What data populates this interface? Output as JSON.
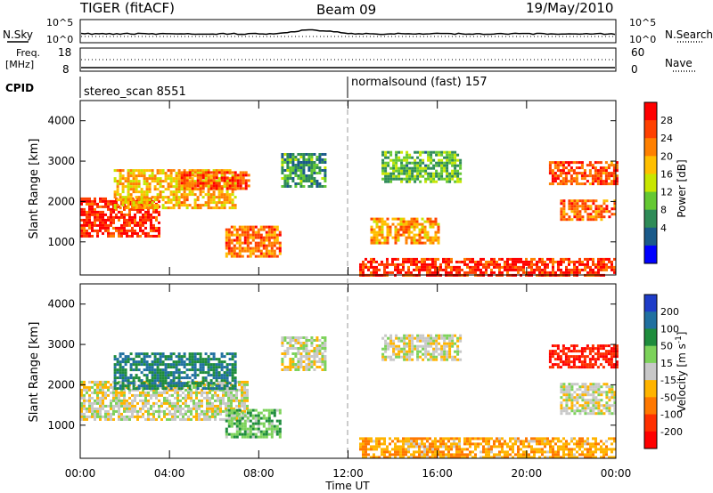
{
  "header": {
    "radar": "TIGER (fitACF)",
    "beam": "Beam 09",
    "date": "19/May/2010"
  },
  "noise_panel": {
    "left_label": "N.Sky",
    "tick_top": "10^5",
    "tick_bottom": "10^0",
    "right_label": "N.Search"
  },
  "freq_panel": {
    "left_label_1": "Freq.",
    "left_label_2": "[MHz]",
    "left_tick_top": "18",
    "left_tick_bottom": "8",
    "right_tick_top": "60",
    "right_tick_bottom": "0",
    "right_label": "Nave"
  },
  "cpid": {
    "label": "CPID",
    "segments": [
      {
        "name": "stereo_scan 8551",
        "start_hour": 0,
        "end_hour": 12
      },
      {
        "name": "normalsound (fast) 157",
        "start_hour": 12,
        "end_hour": 24
      }
    ]
  },
  "power_colorbar": {
    "title": "Power [dB]",
    "ticks": [
      "28",
      "24",
      "20",
      "16",
      "12",
      "8",
      "4"
    ],
    "colors": [
      "#ff0000",
      "#ff4000",
      "#ff8000",
      "#ffbf00",
      "#c8e600",
      "#64c832",
      "#2e8b57",
      "#1a5a8a",
      "#0000ff"
    ]
  },
  "velocity_colorbar": {
    "title": "Velocity [m s",
    "title_sup": "-1",
    "title_end": "]",
    "ticks": [
      "200",
      "100",
      "50",
      "15",
      "-15",
      "-50",
      "-100",
      "-200"
    ],
    "colors": [
      "#1e3cc8",
      "#2070a0",
      "#1e8c3c",
      "#7cd25a",
      "#c8c8c8",
      "#ffb400",
      "#ff7800",
      "#ff3000",
      "#ff0000"
    ]
  },
  "chart_data": [
    {
      "type": "heatmap",
      "quantity": "Power",
      "ylabel": "Slant Range [km]",
      "ylim": [
        180,
        4500
      ],
      "yticks": [
        "1000",
        "2000",
        "3000",
        "4000"
      ],
      "xlim_hours": [
        0,
        24
      ],
      "regions": [
        {
          "t0": 0.0,
          "t1": 3.5,
          "r0": 1150,
          "r1": 2100,
          "value": 26
        },
        {
          "t0": 1.5,
          "t1": 7.0,
          "r0": 1850,
          "r1": 2800,
          "value": 18
        },
        {
          "t0": 4.5,
          "t1": 7.5,
          "r0": 2350,
          "r1": 2750,
          "value": 24
        },
        {
          "t0": 6.5,
          "t1": 9.0,
          "r0": 650,
          "r1": 1400,
          "value": 22
        },
        {
          "t0": 9.0,
          "t1": 11.0,
          "r0": 2400,
          "r1": 3200,
          "value": 8
        },
        {
          "t0": 13.5,
          "t1": 17.0,
          "r0": 2500,
          "r1": 3250,
          "value": 10
        },
        {
          "t0": 13.0,
          "t1": 16.0,
          "r0": 1000,
          "r1": 1600,
          "value": 20
        },
        {
          "t0": 12.5,
          "t1": 24.0,
          "r0": 200,
          "r1": 600,
          "value": 26
        },
        {
          "t0": 21.0,
          "t1": 24.0,
          "r0": 2450,
          "r1": 3000,
          "value": 24
        },
        {
          "t0": 21.5,
          "t1": 24.0,
          "r0": 1550,
          "r1": 2050,
          "value": 22
        }
      ]
    },
    {
      "type": "heatmap",
      "quantity": "Velocity",
      "ylabel": "Slant Range [km]",
      "ylim": [
        180,
        4500
      ],
      "yticks": [
        "1000",
        "2000",
        "3000",
        "4000"
      ],
      "xlim_hours": [
        0,
        24
      ],
      "xticks": [
        "00:00",
        "04:00",
        "08:00",
        "12:00",
        "16:00",
        "20:00",
        "00:00"
      ],
      "xlabel": "Time UT",
      "regions": [
        {
          "t0": 0.0,
          "t1": 7.5,
          "r0": 1150,
          "r1": 2100,
          "value": 0
        },
        {
          "t0": 1.5,
          "t1": 7.0,
          "r0": 1900,
          "r1": 2800,
          "value": 100
        },
        {
          "t0": 6.5,
          "t1": 9.0,
          "r0": 700,
          "r1": 1400,
          "value": 40
        },
        {
          "t0": 9.0,
          "t1": 11.0,
          "r0": 2400,
          "r1": 3200,
          "value": 0
        },
        {
          "t0": 13.5,
          "t1": 17.0,
          "r0": 2600,
          "r1": 3250,
          "value": 0
        },
        {
          "t0": 12.5,
          "t1": 24.0,
          "r0": 200,
          "r1": 700,
          "value": -40
        },
        {
          "t0": 21.0,
          "t1": 24.0,
          "r0": 2450,
          "r1": 3000,
          "value": -200
        },
        {
          "t0": 21.5,
          "t1": 24.0,
          "r0": 1300,
          "r1": 2050,
          "value": 0
        }
      ]
    }
  ]
}
